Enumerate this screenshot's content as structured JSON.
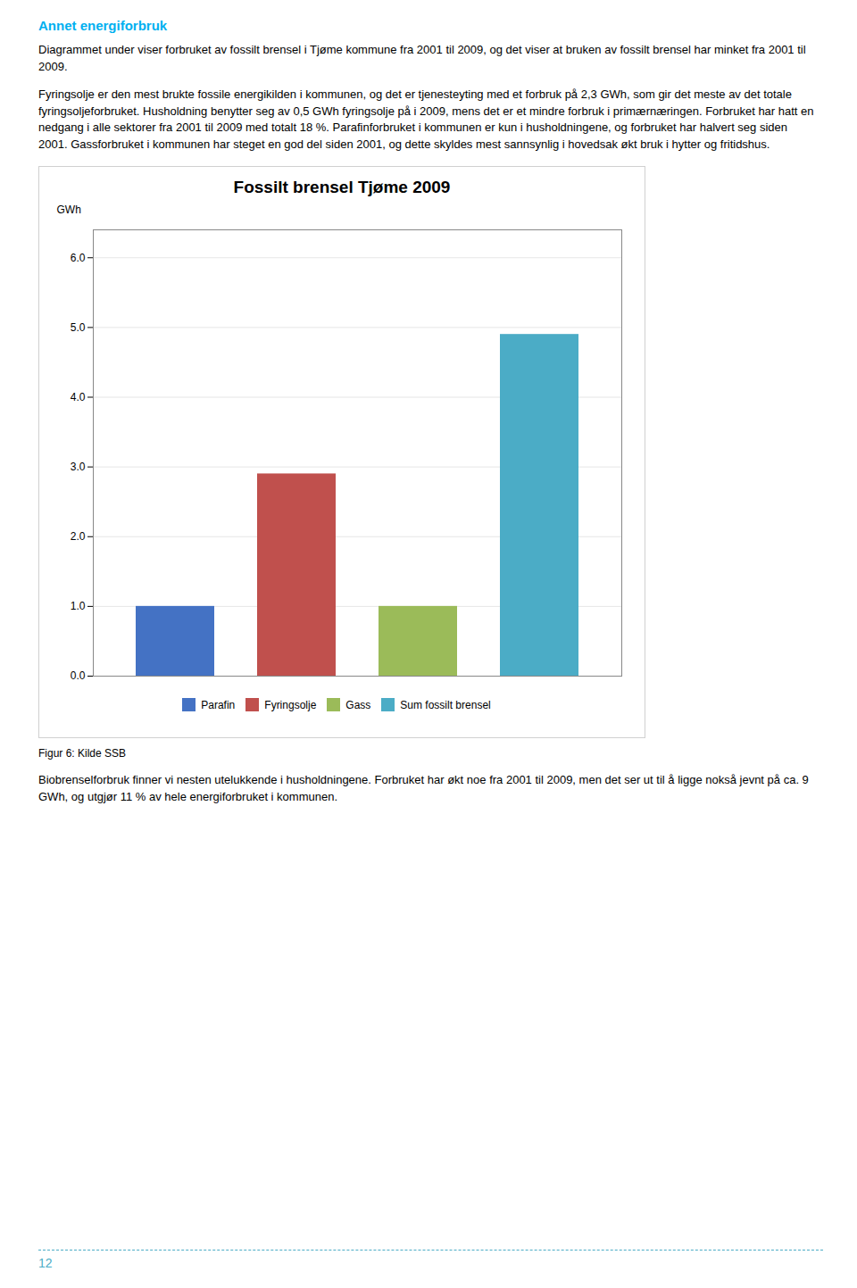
{
  "chart_data": {
    "type": "bar",
    "title": "Fossilt brensel Tjøme 2009",
    "ylabel": "GWh",
    "categories": [
      "Parafin",
      "Fyringsolje",
      "Gass",
      "Sum fossilt brensel"
    ],
    "values": [
      1.0,
      2.9,
      1.0,
      4.9
    ],
    "colors": [
      "#4472C4",
      "#C0504D",
      "#9BBB59",
      "#4BACC6"
    ],
    "ylim": [
      0,
      6.4
    ],
    "yticks": [
      0,
      1,
      2,
      3,
      4,
      5,
      6
    ],
    "grid": true,
    "legend": "bottom",
    "tick_labels": "y",
    "annotations": [
      "Annet energiforbruk",
      "Diagrammet under viser forbruket av fossilt brensel i Tjøme kommune fra 2001 til 2009, og det viser at bruken av fossilt brensel har minket fra 2001 til 2009.",
      "Fyringsolje er den mest brukte fossile energikilden i kommunen, og det er tjenesteyting med et forbruk på 2,3 GWh, som gir det meste av det totale fyringsoljeforbruket. Husholdning benytter seg av 0,5 GWh fyringsolje på i 2009, mens det er et mindre forbruk i primærnæringen. Forbruket har hatt en nedgang i alle sektorer fra 2001 til 2009 med totalt 18 %. Parafinforbruket i kommunen er kun i husholdningene, og forbruket har halvert seg siden 2001. Gassforbruket i kommunen har steget en god del siden 2001, og dette skyldes mest sannsynlig i hovedsak økt bruk i hytter og fritidshus.",
      "Figur 6: Kilde SSB",
      "Biobrenselforbruk finner vi nesten utelukkende i husholdningene. Forbruket har økt noe fra 2001 til 2009, men det ser ut til å ligge nokså jevnt på ca. 9 GWh, og utgjør 11 % av hele energiforbruket i kommunen.",
      "12"
    ]
  }
}
